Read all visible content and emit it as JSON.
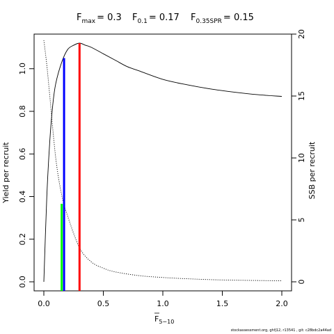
{
  "chart_data": {
    "type": "line",
    "title": {
      "fmax": {
        "base": "F",
        "sub": "max",
        "value": "= 0.3"
      },
      "f01": {
        "base": "F",
        "sub": "0.1",
        "value": "= 0.17"
      },
      "fspr": {
        "base": "F",
        "sub": "0.35SPR",
        "value": "= 0.15"
      }
    },
    "xlabel": {
      "base": "F",
      "sub": "5−10"
    },
    "ylabel_left": "Yield per recruit",
    "ylabel_right": "SSB per recruit",
    "xlim": [
      0,
      2.0
    ],
    "ylim_left": [
      0,
      1.12
    ],
    "ylim_right": [
      0,
      20
    ],
    "x_ticks": [
      "0.0",
      "0.5",
      "1.0",
      "1.5",
      "2.0"
    ],
    "y_left_ticks": [
      "0.0",
      "0.2",
      "0.4",
      "0.6",
      "0.8",
      "1.0"
    ],
    "y_right_ticks": [
      "0",
      "5",
      "10",
      "15",
      "20"
    ],
    "grid": false,
    "series": [
      {
        "style": "solid",
        "axis": "left",
        "x": [
          0,
          0.025,
          0.05,
          0.075,
          0.1,
          0.15,
          0.2,
          0.25,
          0.3,
          0.35,
          0.4,
          0.5,
          0.6,
          0.7,
          0.8,
          1.0,
          1.2,
          1.4,
          1.6,
          1.8,
          2.0
        ],
        "y": [
          0,
          0.4,
          0.66,
          0.83,
          0.93,
          1.03,
          1.09,
          1.11,
          1.12,
          1.11,
          1.1,
          1.07,
          1.04,
          1.01,
          0.99,
          0.95,
          0.925,
          0.905,
          0.89,
          0.878,
          0.87
        ]
      },
      {
        "style": "dotted",
        "axis": "right",
        "x": [
          0,
          0.025,
          0.05,
          0.1,
          0.15,
          0.2,
          0.3,
          0.4,
          0.5,
          0.6,
          0.8,
          1.0,
          1.2,
          1.5,
          2.0
        ],
        "y": [
          19.5,
          17.5,
          15.0,
          10.0,
          7.0,
          5.3,
          2.75,
          1.6,
          1.1,
          0.8,
          0.5,
          0.35,
          0.25,
          0.15,
          0.08
        ]
      }
    ],
    "reference_lines": [
      {
        "label": "Fmax",
        "x": 0.3,
        "y": 1.12,
        "axis": "left",
        "color": "#ff0000"
      },
      {
        "label": "F0.1",
        "x": 0.17,
        "y": 1.05,
        "axis": "left",
        "color": "#0000ff"
      },
      {
        "label": "F0.35SPR",
        "x": 0.15,
        "y": 6.3,
        "axis": "right",
        "color": "#00ff00"
      }
    ]
  },
  "footer": "stockassessment.org, ghfj12, r13541 , git: c28bdc2a44ad"
}
